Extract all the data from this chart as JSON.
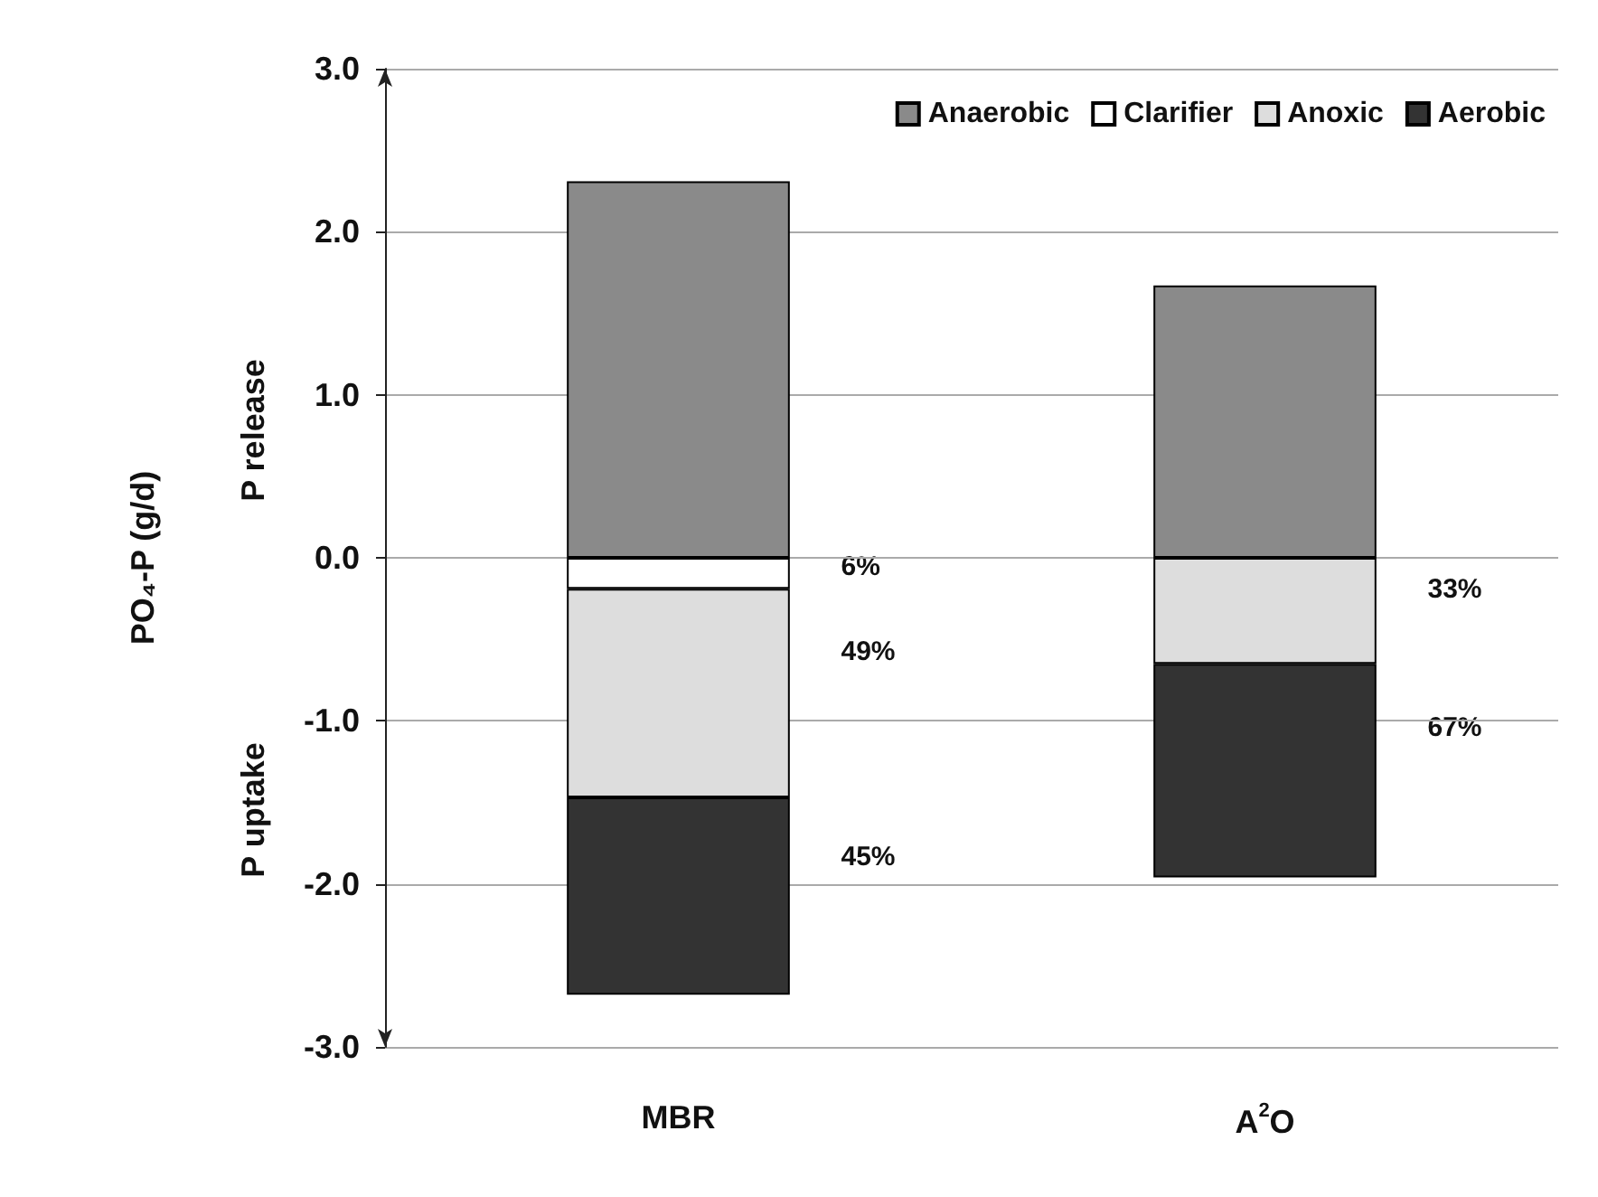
{
  "chart_data": {
    "type": "bar",
    "stacked": true,
    "categories": [
      "MBR",
      "A$^{2}$O"
    ],
    "ylabel": "PO₄-P (g/d)",
    "annotations": [
      "P uptake",
      "P release",
      "6%",
      "49%",
      "45%",
      "33%",
      "67%"
    ],
    "series": [
      {
        "name": "Anaerobic",
        "color": "#8a8a8a",
        "values": [
          2.31,
          1.67
        ]
      },
      {
        "name": "Clarifier",
        "color": "#ffffff",
        "values": [
          -0.19,
          null
        ]
      },
      {
        "name": "Anoxic",
        "color": "#dddddd",
        "values": [
          -1.28,
          -0.65
        ]
      },
      {
        "name": "Aerobic",
        "color": "#333333",
        "values": [
          -1.21,
          -1.31
        ]
      }
    ],
    "ylim": [
      -3.0,
      3.0
    ],
    "yticks": [
      {
        "value": -3,
        "label": "-3.0"
      },
      {
        "value": -2,
        "label": "-2.0"
      },
      {
        "value": -1,
        "label": "-1.0"
      },
      {
        "value": 0,
        "label": "0.0"
      },
      {
        "value": 1,
        "label": "1.0"
      },
      {
        "value": 2,
        "label": "2.0"
      },
      {
        "value": 3,
        "label": "3.0"
      }
    ],
    "grid": "y",
    "legend": "top right"
  }
}
